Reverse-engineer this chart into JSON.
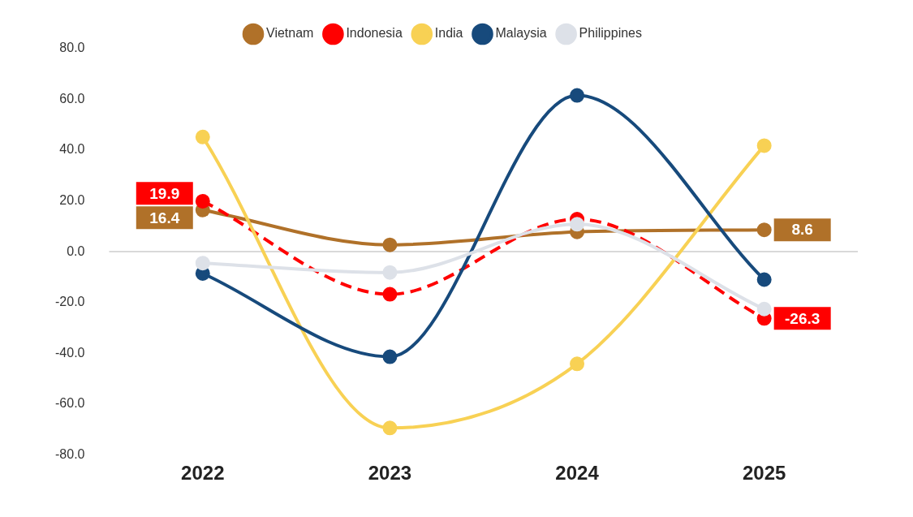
{
  "chart_data": {
    "type": "line",
    "categories": [
      "2022",
      "2023",
      "2024",
      "2025"
    ],
    "series": [
      {
        "name": "Vietnam",
        "color": "#b07129",
        "values": [
          16.4,
          2.7,
          7.8,
          8.6
        ],
        "value_labels": [
          "16.4",
          null,
          null,
          "8.6"
        ]
      },
      {
        "name": "Indonesia",
        "color": "#ff0000",
        "line_style": "dashed",
        "values": [
          19.9,
          -16.8,
          12.8,
          -26.3
        ],
        "value_labels": [
          "19.9",
          null,
          null,
          "-26.3"
        ]
      },
      {
        "name": "India",
        "color": "#f8d154",
        "values": [
          45.2,
          -69.5,
          -44.2,
          41.8
        ]
      },
      {
        "name": "Malaysia",
        "color": "#174a7c",
        "values": [
          -8.6,
          -41.4,
          61.6,
          -11.0
        ]
      },
      {
        "name": "Philippines",
        "color": "#dde1e8",
        "values": [
          -4.5,
          -8.2,
          10.8,
          -22.6
        ]
      }
    ],
    "ylim": [
      -80,
      80
    ],
    "yticks": [
      {
        "value": -80,
        "label": "-80.0"
      },
      {
        "value": -60,
        "label": "-60.0"
      },
      {
        "value": -40,
        "label": "-40.0"
      },
      {
        "value": -20,
        "label": "-20.0"
      },
      {
        "value": 0,
        "label": "0.0"
      },
      {
        "value": 20,
        "label": "20.0"
      },
      {
        "value": 40,
        "label": "40.0"
      },
      {
        "value": 60,
        "label": "60.0"
      },
      {
        "value": 80,
        "label": "80.0"
      }
    ],
    "grid": false,
    "ref_lines": [
      {
        "axis": "y",
        "value": 0,
        "color": "#d9d9d9"
      }
    ],
    "legend": "top",
    "marker": "circle"
  }
}
